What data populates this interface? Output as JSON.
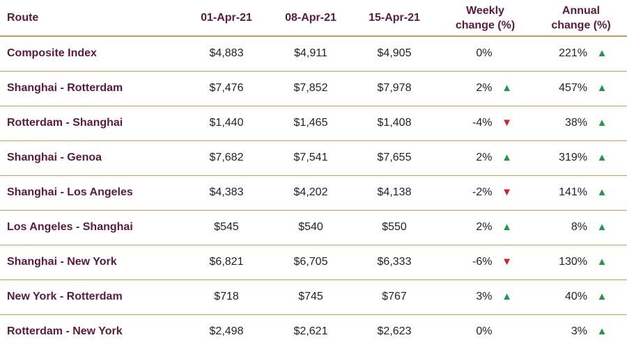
{
  "chart_data": {
    "type": "table",
    "columns": [
      "Route",
      "01-Apr-21",
      "08-Apr-21",
      "15-Apr-21",
      "Weekly change (%)",
      "Annual change (%)"
    ],
    "header": {
      "route": "Route",
      "d1": "01-Apr-21",
      "d2": "08-Apr-21",
      "d3": "15-Apr-21",
      "weekly_l1": "Weekly",
      "weekly_l2": "change (%)",
      "annual_l1": "Annual",
      "annual_l2": "change (%)"
    },
    "rows": [
      {
        "route": "Composite Index",
        "d1": "$4,883",
        "d2": "$4,911",
        "d3": "$4,905",
        "weekly": "0%",
        "weekly_dir": "none",
        "annual": "221%",
        "annual_dir": "up"
      },
      {
        "route": "Shanghai - Rotterdam",
        "d1": "$7,476",
        "d2": "$7,852",
        "d3": "$7,978",
        "weekly": "2%",
        "weekly_dir": "up",
        "annual": "457%",
        "annual_dir": "up"
      },
      {
        "route": "Rotterdam - Shanghai",
        "d1": "$1,440",
        "d2": "$1,465",
        "d3": "$1,408",
        "weekly": "-4%",
        "weekly_dir": "down",
        "annual": "38%",
        "annual_dir": "up"
      },
      {
        "route": "Shanghai - Genoa",
        "d1": "$7,682",
        "d2": "$7,541",
        "d3": "$7,655",
        "weekly": "2%",
        "weekly_dir": "up",
        "annual": "319%",
        "annual_dir": "up"
      },
      {
        "route": "Shanghai - Los Angeles",
        "d1": "$4,383",
        "d2": "$4,202",
        "d3": "$4,138",
        "weekly": "-2%",
        "weekly_dir": "down",
        "annual": "141%",
        "annual_dir": "up"
      },
      {
        "route": "Los Angeles - Shanghai",
        "d1": "$545",
        "d2": "$540",
        "d3": "$550",
        "weekly": "2%",
        "weekly_dir": "up",
        "annual": "8%",
        "annual_dir": "up"
      },
      {
        "route": "Shanghai - New York",
        "d1": "$6,821",
        "d2": "$6,705",
        "d3": "$6,333",
        "weekly": "-6%",
        "weekly_dir": "down",
        "annual": "130%",
        "annual_dir": "up"
      },
      {
        "route": "New York - Rotterdam",
        "d1": "$718",
        "d2": "$745",
        "d3": "$767",
        "weekly": "3%",
        "weekly_dir": "up",
        "annual": "40%",
        "annual_dir": "up"
      },
      {
        "route": "Rotterdam - New York",
        "d1": "$2,498",
        "d2": "$2,621",
        "d3": "$2,623",
        "weekly": "0%",
        "weekly_dir": "none",
        "annual": "3%",
        "annual_dir": "up"
      }
    ],
    "colors": {
      "header_text": "#5b1a3f",
      "rule": "#d69a4e",
      "up": "#1f9a48",
      "down": "#d41f2a"
    }
  }
}
